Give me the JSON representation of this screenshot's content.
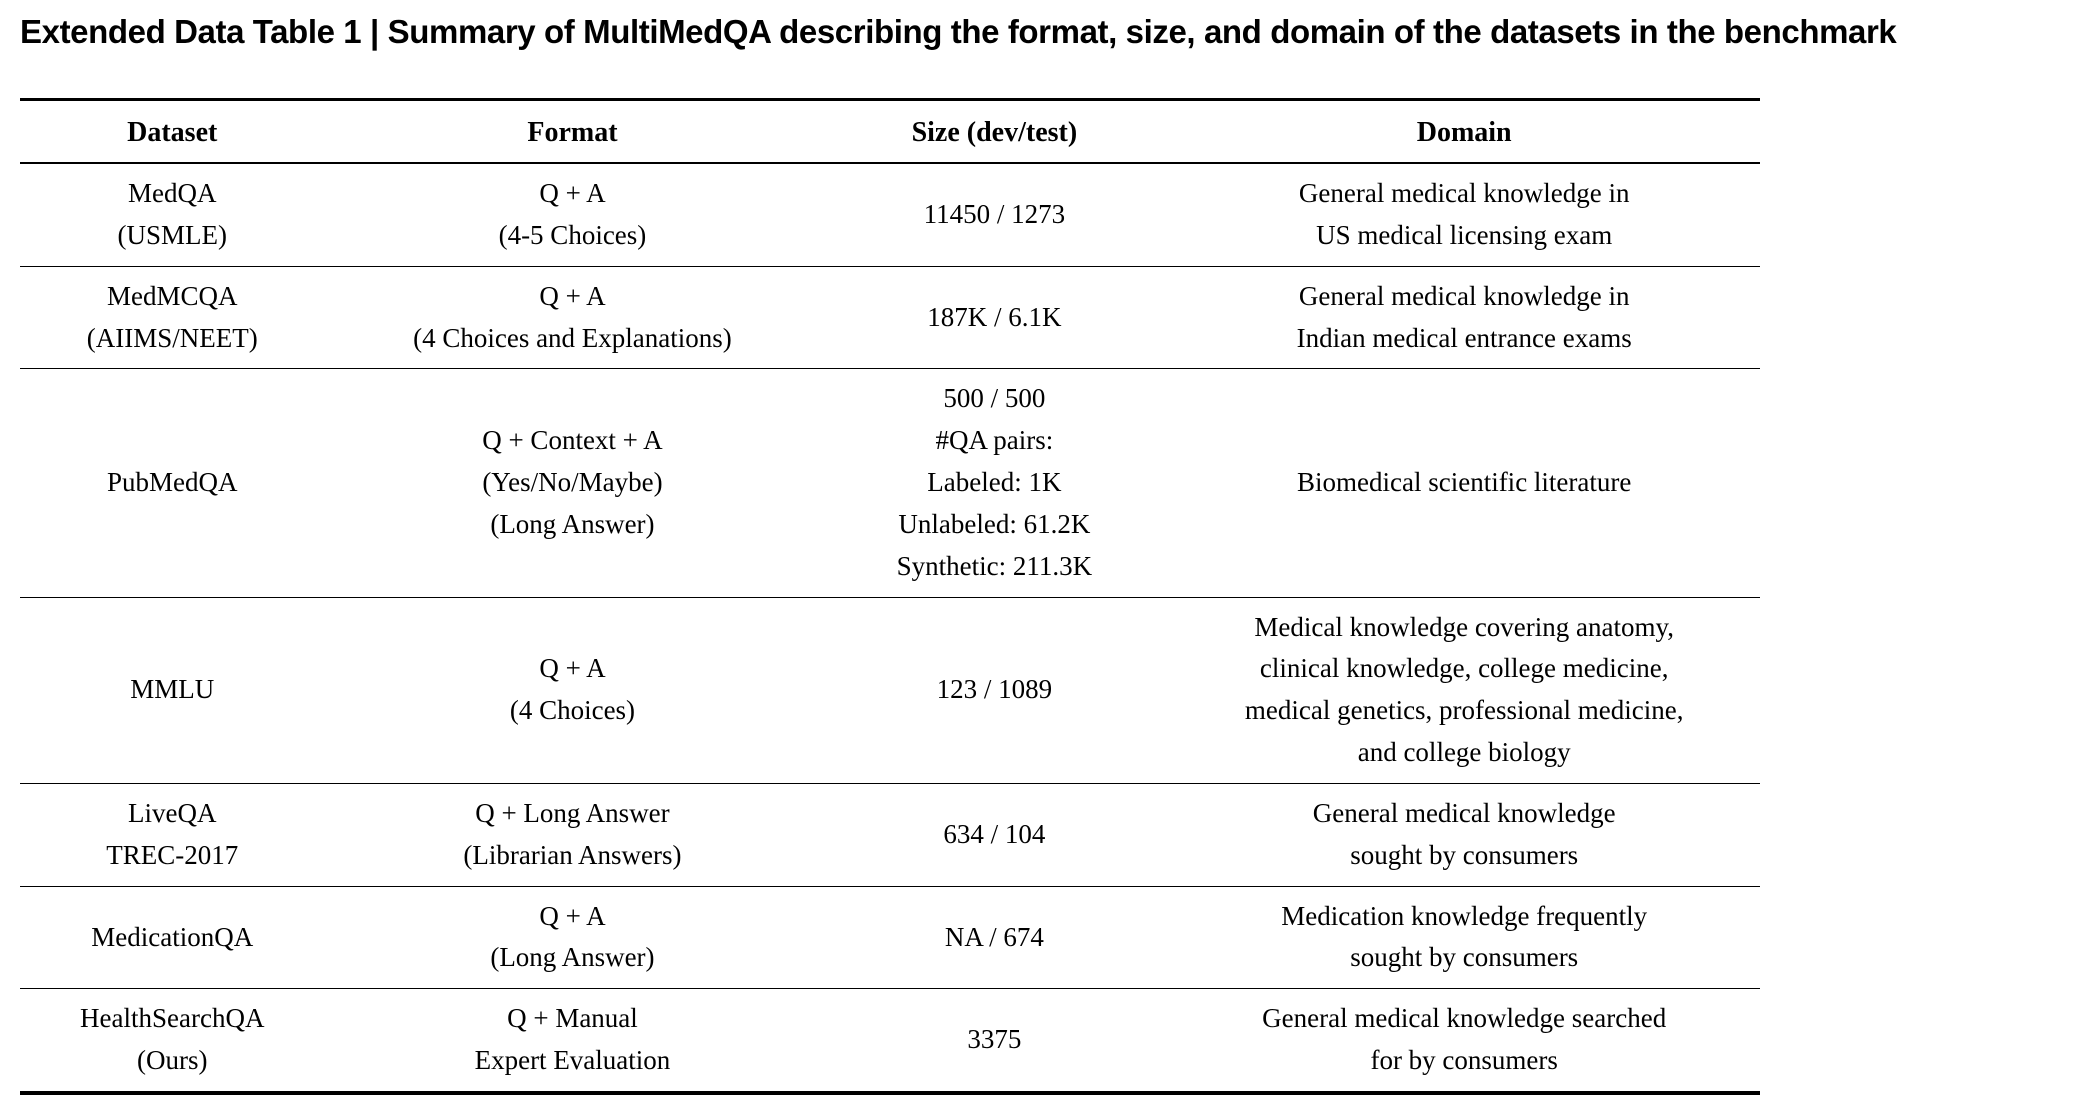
{
  "page": {
    "title": "Extended Data Table 1 | Summary of MultiMedQA describing the format, size, and domain of the datasets in the benchmark"
  },
  "table": {
    "column_keys": [
      "dataset",
      "format",
      "size",
      "domain"
    ],
    "headers": [
      "Dataset",
      "Format",
      "Size (dev/test)",
      "Domain"
    ],
    "rows": [
      {
        "dataset": "MedQA\n(USMLE)",
        "format": "Q + A\n(4-5 Choices)",
        "size": "11450 / 1273",
        "domain": "General medical knowledge in\nUS medical licensing exam"
      },
      {
        "dataset": "MedMCQA\n(AIIMS/NEET)",
        "format": "Q + A\n(4 Choices and Explanations)",
        "size": "187K / 6.1K",
        "domain": "General medical knowledge in\nIndian medical entrance exams"
      },
      {
        "dataset": "PubMedQA",
        "format": "Q + Context + A\n(Yes/No/Maybe)\n(Long Answer)",
        "size": "500 / 500\n#QA pairs:\nLabeled: 1K\nUnlabeled: 61.2K\nSynthetic: 211.3K",
        "domain": "Biomedical scientific literature"
      },
      {
        "dataset": "MMLU",
        "format": "Q + A\n(4 Choices)",
        "size": "123 / 1089",
        "domain": "Medical knowledge covering anatomy,\nclinical knowledge, college medicine,\nmedical genetics, professional medicine,\nand college biology"
      },
      {
        "dataset": "LiveQA\nTREC-2017",
        "format": "Q + Long Answer\n(Librarian Answers)",
        "size": "634 / 104",
        "domain": "General medical knowledge\nsought by consumers"
      },
      {
        "dataset": "MedicationQA",
        "format": "Q + A\n(Long Answer)",
        "size": "NA / 674",
        "domain": "Medication knowledge frequently\nsought by consumers"
      },
      {
        "dataset": "HealthSearchQA\n(Ours)",
        "format": "Q + Manual\nExpert Evaluation",
        "size": "3375",
        "domain": "General medical knowledge searched\nfor by consumers"
      }
    ]
  }
}
